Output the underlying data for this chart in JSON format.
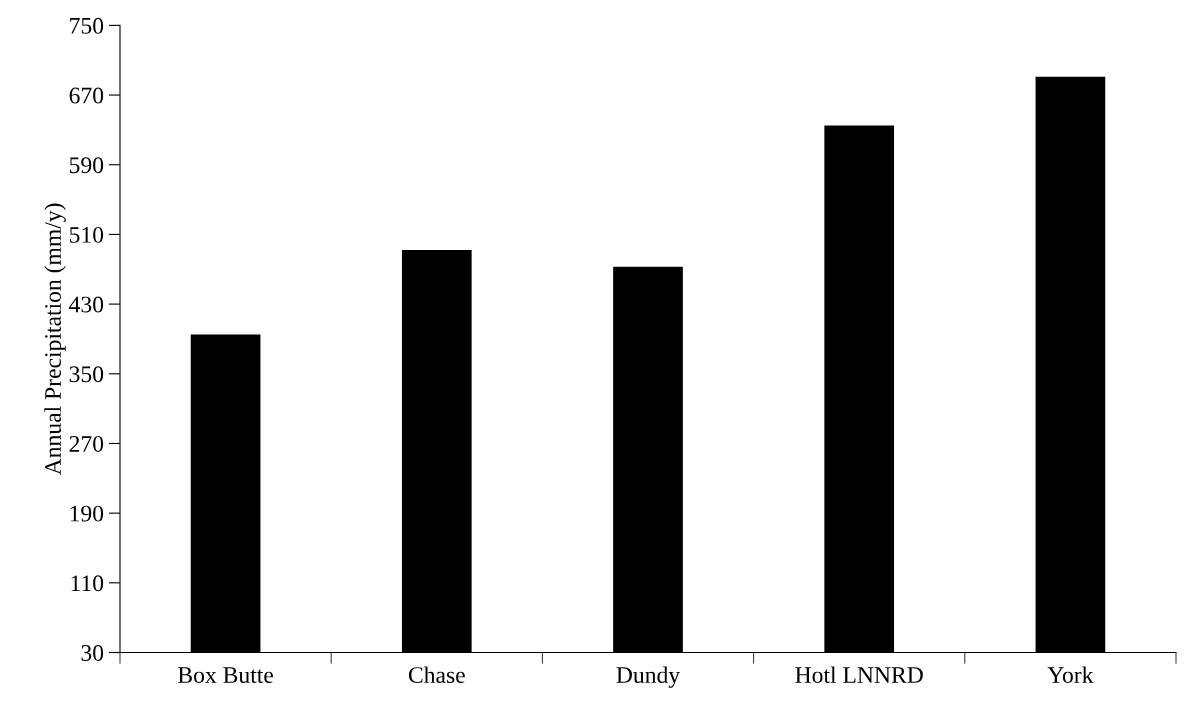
{
  "chart_data": {
    "type": "bar",
    "ylabel": "Annual Precipitation (mm/y)",
    "categories": [
      "Box Butte",
      "Chase",
      "Dundy",
      "Hotl LNNRD",
      "York"
    ],
    "values": [
      395,
      492,
      473,
      635,
      691
    ],
    "color": "#000000",
    "ylim": [
      30,
      750
    ],
    "yticks": [
      30,
      110,
      190,
      270,
      350,
      430,
      510,
      590,
      670,
      750
    ],
    "grid": false,
    "legend": false
  }
}
